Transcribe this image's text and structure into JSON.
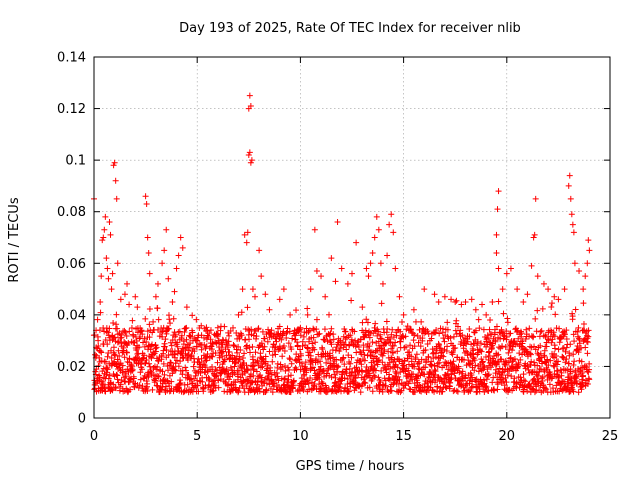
{
  "chart_data": {
    "type": "scatter",
    "title": "Day 193 of 2025, Rate Of TEC Index for receiver nlib",
    "xlabel": "GPS time / hours",
    "ylabel": "ROTI / TECUs",
    "xlim": [
      0,
      25
    ],
    "ylim": [
      0,
      0.14
    ],
    "xticks": [
      0,
      5,
      10,
      15,
      20,
      25
    ],
    "xtick_labels": [
      "0",
      "5",
      "10",
      "15",
      "20",
      "25"
    ],
    "yticks": [
      0,
      0.02,
      0.04,
      0.06,
      0.08,
      0.1,
      0.12,
      0.14
    ],
    "ytick_labels": [
      "0",
      "0.02",
      "0.04",
      "0.06",
      "0.08",
      "0.1",
      "0.12",
      "0.14"
    ],
    "grid": true,
    "marker": "+",
    "series_color": "#ff0000",
    "x_data_range_hours": [
      0,
      24
    ],
    "series": [
      {
        "name": "ROTI",
        "baseline_band": [
          0.01,
          0.035
        ],
        "points": [
          [
            0.0,
            0.085
          ],
          [
            0.1,
            0.034
          ],
          [
            0.2,
            0.03
          ],
          [
            0.3,
            0.045
          ],
          [
            0.35,
            0.055
          ],
          [
            0.4,
            0.069
          ],
          [
            0.45,
            0.07
          ],
          [
            0.5,
            0.073
          ],
          [
            0.55,
            0.078
          ],
          [
            0.6,
            0.062
          ],
          [
            0.65,
            0.058
          ],
          [
            0.7,
            0.054
          ],
          [
            0.75,
            0.076
          ],
          [
            0.8,
            0.071
          ],
          [
            0.85,
            0.05
          ],
          [
            0.9,
            0.056
          ],
          [
            0.95,
            0.098
          ],
          [
            1.0,
            0.099
          ],
          [
            1.05,
            0.092
          ],
          [
            1.1,
            0.085
          ],
          [
            1.15,
            0.06
          ],
          [
            1.3,
            0.046
          ],
          [
            1.5,
            0.048
          ],
          [
            1.6,
            0.052
          ],
          [
            1.7,
            0.044
          ],
          [
            2.0,
            0.047
          ],
          [
            2.1,
            0.043
          ],
          [
            2.5,
            0.086
          ],
          [
            2.55,
            0.083
          ],
          [
            2.6,
            0.07
          ],
          [
            2.65,
            0.064
          ],
          [
            2.7,
            0.056
          ],
          [
            3.0,
            0.047
          ],
          [
            3.1,
            0.052
          ],
          [
            3.3,
            0.06
          ],
          [
            3.4,
            0.065
          ],
          [
            3.5,
            0.073
          ],
          [
            3.6,
            0.054
          ],
          [
            3.8,
            0.045
          ],
          [
            3.9,
            0.049
          ],
          [
            4.0,
            0.058
          ],
          [
            4.1,
            0.063
          ],
          [
            4.2,
            0.07
          ],
          [
            4.3,
            0.066
          ],
          [
            4.5,
            0.043
          ],
          [
            5.0,
            0.03
          ],
          [
            5.5,
            0.032
          ],
          [
            6.0,
            0.035
          ],
          [
            6.5,
            0.033
          ],
          [
            7.0,
            0.04
          ],
          [
            7.2,
            0.05
          ],
          [
            7.3,
            0.071
          ],
          [
            7.4,
            0.068
          ],
          [
            7.45,
            0.072
          ],
          [
            7.5,
            0.102
          ],
          [
            7.55,
            0.103
          ],
          [
            7.6,
            0.099
          ],
          [
            7.65,
            0.1
          ],
          [
            7.5,
            0.12
          ],
          [
            7.55,
            0.125
          ],
          [
            7.6,
            0.121
          ],
          [
            7.7,
            0.05
          ],
          [
            7.8,
            0.047
          ],
          [
            8.0,
            0.065
          ],
          [
            8.1,
            0.055
          ],
          [
            8.3,
            0.048
          ],
          [
            8.5,
            0.042
          ],
          [
            9.0,
            0.046
          ],
          [
            9.2,
            0.05
          ],
          [
            9.5,
            0.04
          ],
          [
            10.0,
            0.035
          ],
          [
            10.5,
            0.05
          ],
          [
            10.7,
            0.073
          ],
          [
            10.8,
            0.057
          ],
          [
            11.0,
            0.055
          ],
          [
            11.2,
            0.047
          ],
          [
            11.5,
            0.062
          ],
          [
            11.7,
            0.053
          ],
          [
            11.8,
            0.076
          ],
          [
            12.0,
            0.058
          ],
          [
            12.3,
            0.052
          ],
          [
            12.5,
            0.056
          ],
          [
            12.7,
            0.068
          ],
          [
            13.0,
            0.043
          ],
          [
            13.2,
            0.058
          ],
          [
            13.3,
            0.055
          ],
          [
            13.4,
            0.06
          ],
          [
            13.5,
            0.064
          ],
          [
            13.6,
            0.07
          ],
          [
            13.7,
            0.078
          ],
          [
            13.8,
            0.073
          ],
          [
            13.9,
            0.06
          ],
          [
            14.0,
            0.052
          ],
          [
            14.2,
            0.063
          ],
          [
            14.3,
            0.075
          ],
          [
            14.4,
            0.079
          ],
          [
            14.5,
            0.072
          ],
          [
            14.6,
            0.058
          ],
          [
            14.8,
            0.047
          ],
          [
            15.0,
            0.04
          ],
          [
            15.5,
            0.042
          ],
          [
            16.0,
            0.05
          ],
          [
            16.5,
            0.048
          ],
          [
            16.7,
            0.045
          ],
          [
            17.0,
            0.047
          ],
          [
            17.3,
            0.046
          ],
          [
            17.5,
            0.045
          ],
          [
            17.8,
            0.044
          ],
          [
            18.0,
            0.045
          ],
          [
            18.3,
            0.046
          ],
          [
            18.5,
            0.042
          ],
          [
            18.8,
            0.044
          ],
          [
            19.0,
            0.04
          ],
          [
            19.3,
            0.045
          ],
          [
            19.5,
            0.071
          ],
          [
            19.55,
            0.081
          ],
          [
            19.6,
            0.088
          ],
          [
            19.5,
            0.064
          ],
          [
            19.6,
            0.058
          ],
          [
            19.8,
            0.05
          ],
          [
            20.0,
            0.056
          ],
          [
            20.2,
            0.058
          ],
          [
            20.5,
            0.05
          ],
          [
            20.8,
            0.045
          ],
          [
            21.0,
            0.048
          ],
          [
            21.2,
            0.059
          ],
          [
            21.3,
            0.07
          ],
          [
            21.35,
            0.071
          ],
          [
            21.4,
            0.085
          ],
          [
            21.5,
            0.055
          ],
          [
            21.8,
            0.052
          ],
          [
            22.0,
            0.05
          ],
          [
            22.3,
            0.047
          ],
          [
            22.5,
            0.046
          ],
          [
            22.8,
            0.05
          ],
          [
            23.0,
            0.09
          ],
          [
            23.05,
            0.094
          ],
          [
            23.1,
            0.085
          ],
          [
            23.15,
            0.079
          ],
          [
            23.2,
            0.075
          ],
          [
            23.25,
            0.072
          ],
          [
            23.3,
            0.06
          ],
          [
            23.5,
            0.057
          ],
          [
            23.7,
            0.05
          ],
          [
            23.8,
            0.055
          ],
          [
            23.9,
            0.06
          ],
          [
            23.95,
            0.069
          ],
          [
            24.0,
            0.065
          ]
        ]
      }
    ]
  }
}
